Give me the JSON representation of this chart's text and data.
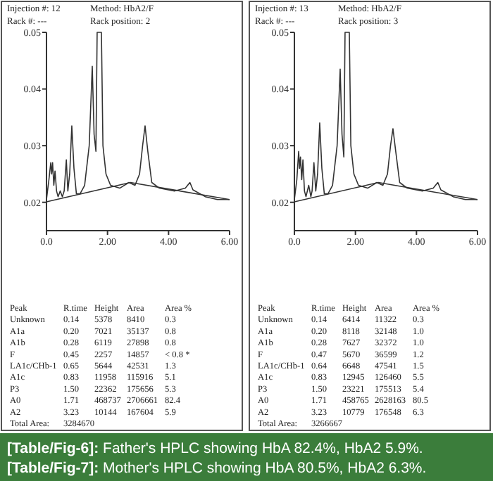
{
  "chart_data": [
    {
      "type": "line",
      "xlim": [
        0,
        6
      ],
      "ylim": [
        0.015,
        0.05
      ],
      "xticks": [
        {
          "value": 0,
          "label": "0.0"
        },
        {
          "value": 2,
          "label": "2.00"
        },
        {
          "value": 4,
          "label": "4.00"
        },
        {
          "value": 6,
          "label": "6.00"
        }
      ],
      "yticks": [
        0.02,
        0.03,
        0.04,
        0.05
      ],
      "grid": false,
      "marker": "none",
      "line_style": "solid",
      "series": [
        {
          "color": "#333333",
          "x": [
            0,
            0.08,
            0.14,
            0.17,
            0.2,
            0.24,
            0.28,
            0.33,
            0.38,
            0.45,
            0.52,
            0.58,
            0.65,
            0.7,
            0.76,
            0.83,
            0.9,
            0.98,
            1.1,
            1.25,
            1.4,
            1.5,
            1.56,
            1.62,
            1.66,
            1.71,
            1.8,
            1.85,
            1.95,
            2.1,
            2.4,
            2.7,
            2.9,
            3.05,
            3.15,
            3.23,
            3.32,
            3.45,
            3.7,
            4.2,
            4.55,
            4.7,
            4.8,
            5.2,
            5.6,
            6
          ],
          "values": [
            0.0205,
            0.024,
            0.027,
            0.025,
            0.027,
            0.023,
            0.0255,
            0.022,
            0.021,
            0.022,
            0.021,
            0.022,
            0.0275,
            0.022,
            0.025,
            0.0335,
            0.026,
            0.0215,
            0.0215,
            0.023,
            0.03,
            0.044,
            0.032,
            0.029,
            0.05,
            0.05,
            0.05,
            0.03,
            0.025,
            0.023,
            0.0225,
            0.0235,
            0.023,
            0.025,
            0.03,
            0.0335,
            0.029,
            0.0235,
            0.0225,
            0.022,
            0.0225,
            0.0235,
            0.0222,
            0.021,
            0.0205,
            0.0205
          ]
        },
        {
          "color": "#333333",
          "x": [
            0,
            2.75,
            6
          ],
          "values": [
            0.0201,
            0.0235,
            0.0205
          ]
        }
      ],
      "annotations": [
        "Injection #: 12",
        "Method: HbA2/F",
        "Rack #: ---",
        "Rack position: 2",
        "Peak",
        "R.time",
        "Height",
        "Area",
        "Area %",
        "Unknown",
        "0.14",
        "5378",
        "8410",
        "0.3",
        "A1a",
        "0.20",
        "7021",
        "35137",
        "0.8",
        "A1b",
        "0.28",
        "6119",
        "27898",
        "0.8",
        "F",
        "0.45",
        "2257",
        "14857",
        "< 0.8 *",
        "LA1c/CHb-1",
        "0.65",
        "5644",
        "42531",
        "1.3",
        "A1c",
        "0.83",
        "11958",
        "115916",
        "5.1",
        "P3",
        "1.50",
        "22362",
        "175656",
        "5.3",
        "A0",
        "1.71",
        "468737",
        "2706661",
        "82.4",
        "A2",
        "3.23",
        "10144",
        "167604",
        "5.9",
        "Total Area:",
        "3284670"
      ]
    },
    {
      "type": "line",
      "xlim": [
        0,
        6
      ],
      "ylim": [
        0.015,
        0.05
      ],
      "xticks": [
        {
          "value": 0,
          "label": "0.0"
        },
        {
          "value": 2,
          "label": "2.00"
        },
        {
          "value": 4,
          "label": "4.00"
        },
        {
          "value": 6,
          "label": "6.00"
        }
      ],
      "yticks": [
        0.02,
        0.03,
        0.04,
        0.05
      ],
      "grid": false,
      "marker": "none",
      "line_style": "solid",
      "series": [
        {
          "color": "#333333",
          "x": [
            0,
            0.08,
            0.14,
            0.17,
            0.2,
            0.24,
            0.28,
            0.33,
            0.38,
            0.47,
            0.54,
            0.58,
            0.64,
            0.7,
            0.76,
            0.83,
            0.9,
            0.98,
            1.1,
            1.25,
            1.4,
            1.5,
            1.56,
            1.62,
            1.66,
            1.71,
            1.8,
            1.85,
            1.95,
            2.1,
            2.4,
            2.7,
            2.9,
            3.05,
            3.15,
            3.23,
            3.32,
            3.45,
            3.7,
            4.2,
            4.55,
            4.7,
            4.8,
            5.2,
            5.6,
            6
          ],
          "values": [
            0.0205,
            0.024,
            0.029,
            0.026,
            0.028,
            0.024,
            0.0275,
            0.022,
            0.021,
            0.023,
            0.021,
            0.022,
            0.027,
            0.022,
            0.025,
            0.034,
            0.026,
            0.0215,
            0.0215,
            0.023,
            0.03,
            0.0435,
            0.032,
            0.028,
            0.05,
            0.05,
            0.05,
            0.03,
            0.025,
            0.023,
            0.0225,
            0.0235,
            0.023,
            0.025,
            0.03,
            0.033,
            0.029,
            0.0235,
            0.0225,
            0.022,
            0.0225,
            0.0235,
            0.0222,
            0.021,
            0.0205,
            0.0205
          ]
        },
        {
          "color": "#333333",
          "x": [
            0,
            2.75,
            6
          ],
          "values": [
            0.0201,
            0.0235,
            0.0205
          ]
        }
      ],
      "annotations": [
        "Injection #: 13",
        "Method: HbA2/F",
        "Rack #: ---",
        "Rack position: 3",
        "Peak",
        "R.time",
        "Height",
        "Area",
        "Area %",
        "Unknown",
        "0.14",
        "6414",
        "11322",
        "0.3",
        "A1a",
        "0.20",
        "8118",
        "32148",
        "1.0",
        "A1b",
        "0.28",
        "7627",
        "32372",
        "1.0",
        "F",
        "0.47",
        "5670",
        "36599",
        "1.2",
        "LA1c/CHb-1",
        "0.64",
        "6648",
        "47541",
        "1.5",
        "A1c",
        "0.83",
        "12945",
        "126460",
        "5.5",
        "P3",
        "1.50",
        "23221",
        "175513",
        "5.4",
        "A0",
        "1.71",
        "458765",
        "2628163",
        "80.5",
        "A2",
        "3.23",
        "10779",
        "176548",
        "6.3",
        "Total Area:",
        "3266667"
      ]
    },
    {
      "type": "other",
      "color": "#3b7d3b",
      "annotations": [
        "[Table/Fig-6]: Father's HPLC showing HbA 82.4%, HbA2 5.9%.",
        "[Table/Fig-7]: Mother's HPLC showing HbA 80.5%, HbA2 6.3%."
      ]
    }
  ]
}
